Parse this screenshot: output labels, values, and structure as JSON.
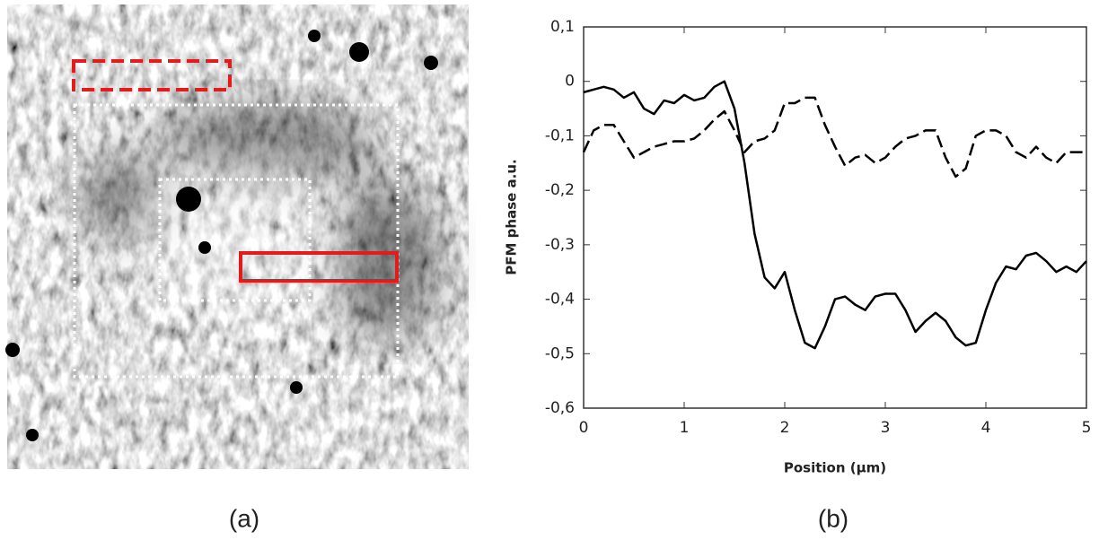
{
  "panel_labels": [
    "(a)",
    "(b)"
  ],
  "chart_data": {
    "type": "line",
    "xlabel": "Position (µm)",
    "ylabel": "PFM phase a.u.",
    "xlim": [
      0,
      5
    ],
    "ylim": [
      -0.6,
      0.1
    ],
    "xticks": [
      0,
      1,
      2,
      3,
      4,
      5
    ],
    "yticks": [
      {
        "value": 0.1,
        "label": "0,1"
      },
      0,
      {
        "value": -0.1,
        "label": "-0,1"
      },
      {
        "value": -0.2,
        "label": "-0,2"
      },
      {
        "value": -0.3,
        "label": "-0,3"
      },
      {
        "value": -0.4,
        "label": "-0,4"
      },
      {
        "value": -0.5,
        "label": "-0,5"
      },
      {
        "value": -0.6,
        "label": "-0,6"
      }
    ],
    "x": [
      0,
      0.1,
      0.2,
      0.3,
      0.4,
      0.5,
      0.6,
      0.7,
      0.8,
      0.9,
      1.0,
      1.1,
      1.2,
      1.3,
      1.4,
      1.5,
      1.6,
      1.7,
      1.8,
      1.9,
      2.0,
      2.1,
      2.2,
      2.3,
      2.4,
      2.5,
      2.6,
      2.7,
      2.8,
      2.9,
      3.0,
      3.1,
      3.2,
      3.3,
      3.4,
      3.5,
      3.6,
      3.7,
      3.8,
      3.9,
      4.0,
      4.1,
      4.2,
      4.3,
      4.4,
      4.5,
      4.6,
      4.7,
      4.8,
      4.9,
      5.0
    ],
    "series": [
      {
        "color": "#000000",
        "dash": "solid",
        "values": [
          -0.02,
          -0.015,
          -0.01,
          -0.015,
          -0.03,
          -0.02,
          -0.05,
          -0.06,
          -0.035,
          -0.04,
          -0.025,
          -0.035,
          -0.03,
          -0.01,
          0.0,
          -0.05,
          -0.15,
          -0.28,
          -0.36,
          -0.38,
          -0.35,
          -0.42,
          -0.48,
          -0.49,
          -0.45,
          -0.4,
          -0.395,
          -0.41,
          -0.42,
          -0.395,
          -0.39,
          -0.39,
          -0.42,
          -0.46,
          -0.44,
          -0.425,
          -0.44,
          -0.47,
          -0.485,
          -0.48,
          -0.42,
          -0.37,
          -0.34,
          -0.345,
          -0.32,
          -0.315,
          -0.33,
          -0.35,
          -0.34,
          -0.35,
          -0.33
        ]
      },
      {
        "color": "#000000",
        "dash": "dashed",
        "values": [
          -0.13,
          -0.09,
          -0.08,
          -0.08,
          -0.11,
          -0.14,
          -0.13,
          -0.12,
          -0.115,
          -0.11,
          -0.11,
          -0.105,
          -0.09,
          -0.07,
          -0.055,
          -0.09,
          -0.13,
          -0.11,
          -0.105,
          -0.09,
          -0.04,
          -0.04,
          -0.03,
          -0.03,
          -0.08,
          -0.12,
          -0.155,
          -0.14,
          -0.135,
          -0.15,
          -0.14,
          -0.12,
          -0.105,
          -0.1,
          -0.09,
          -0.09,
          -0.14,
          -0.175,
          -0.16,
          -0.1,
          -0.09,
          -0.09,
          -0.1,
          -0.13,
          -0.14,
          -0.12,
          -0.14,
          -0.15,
          -0.13,
          -0.13,
          -0.13
        ]
      }
    ]
  }
}
